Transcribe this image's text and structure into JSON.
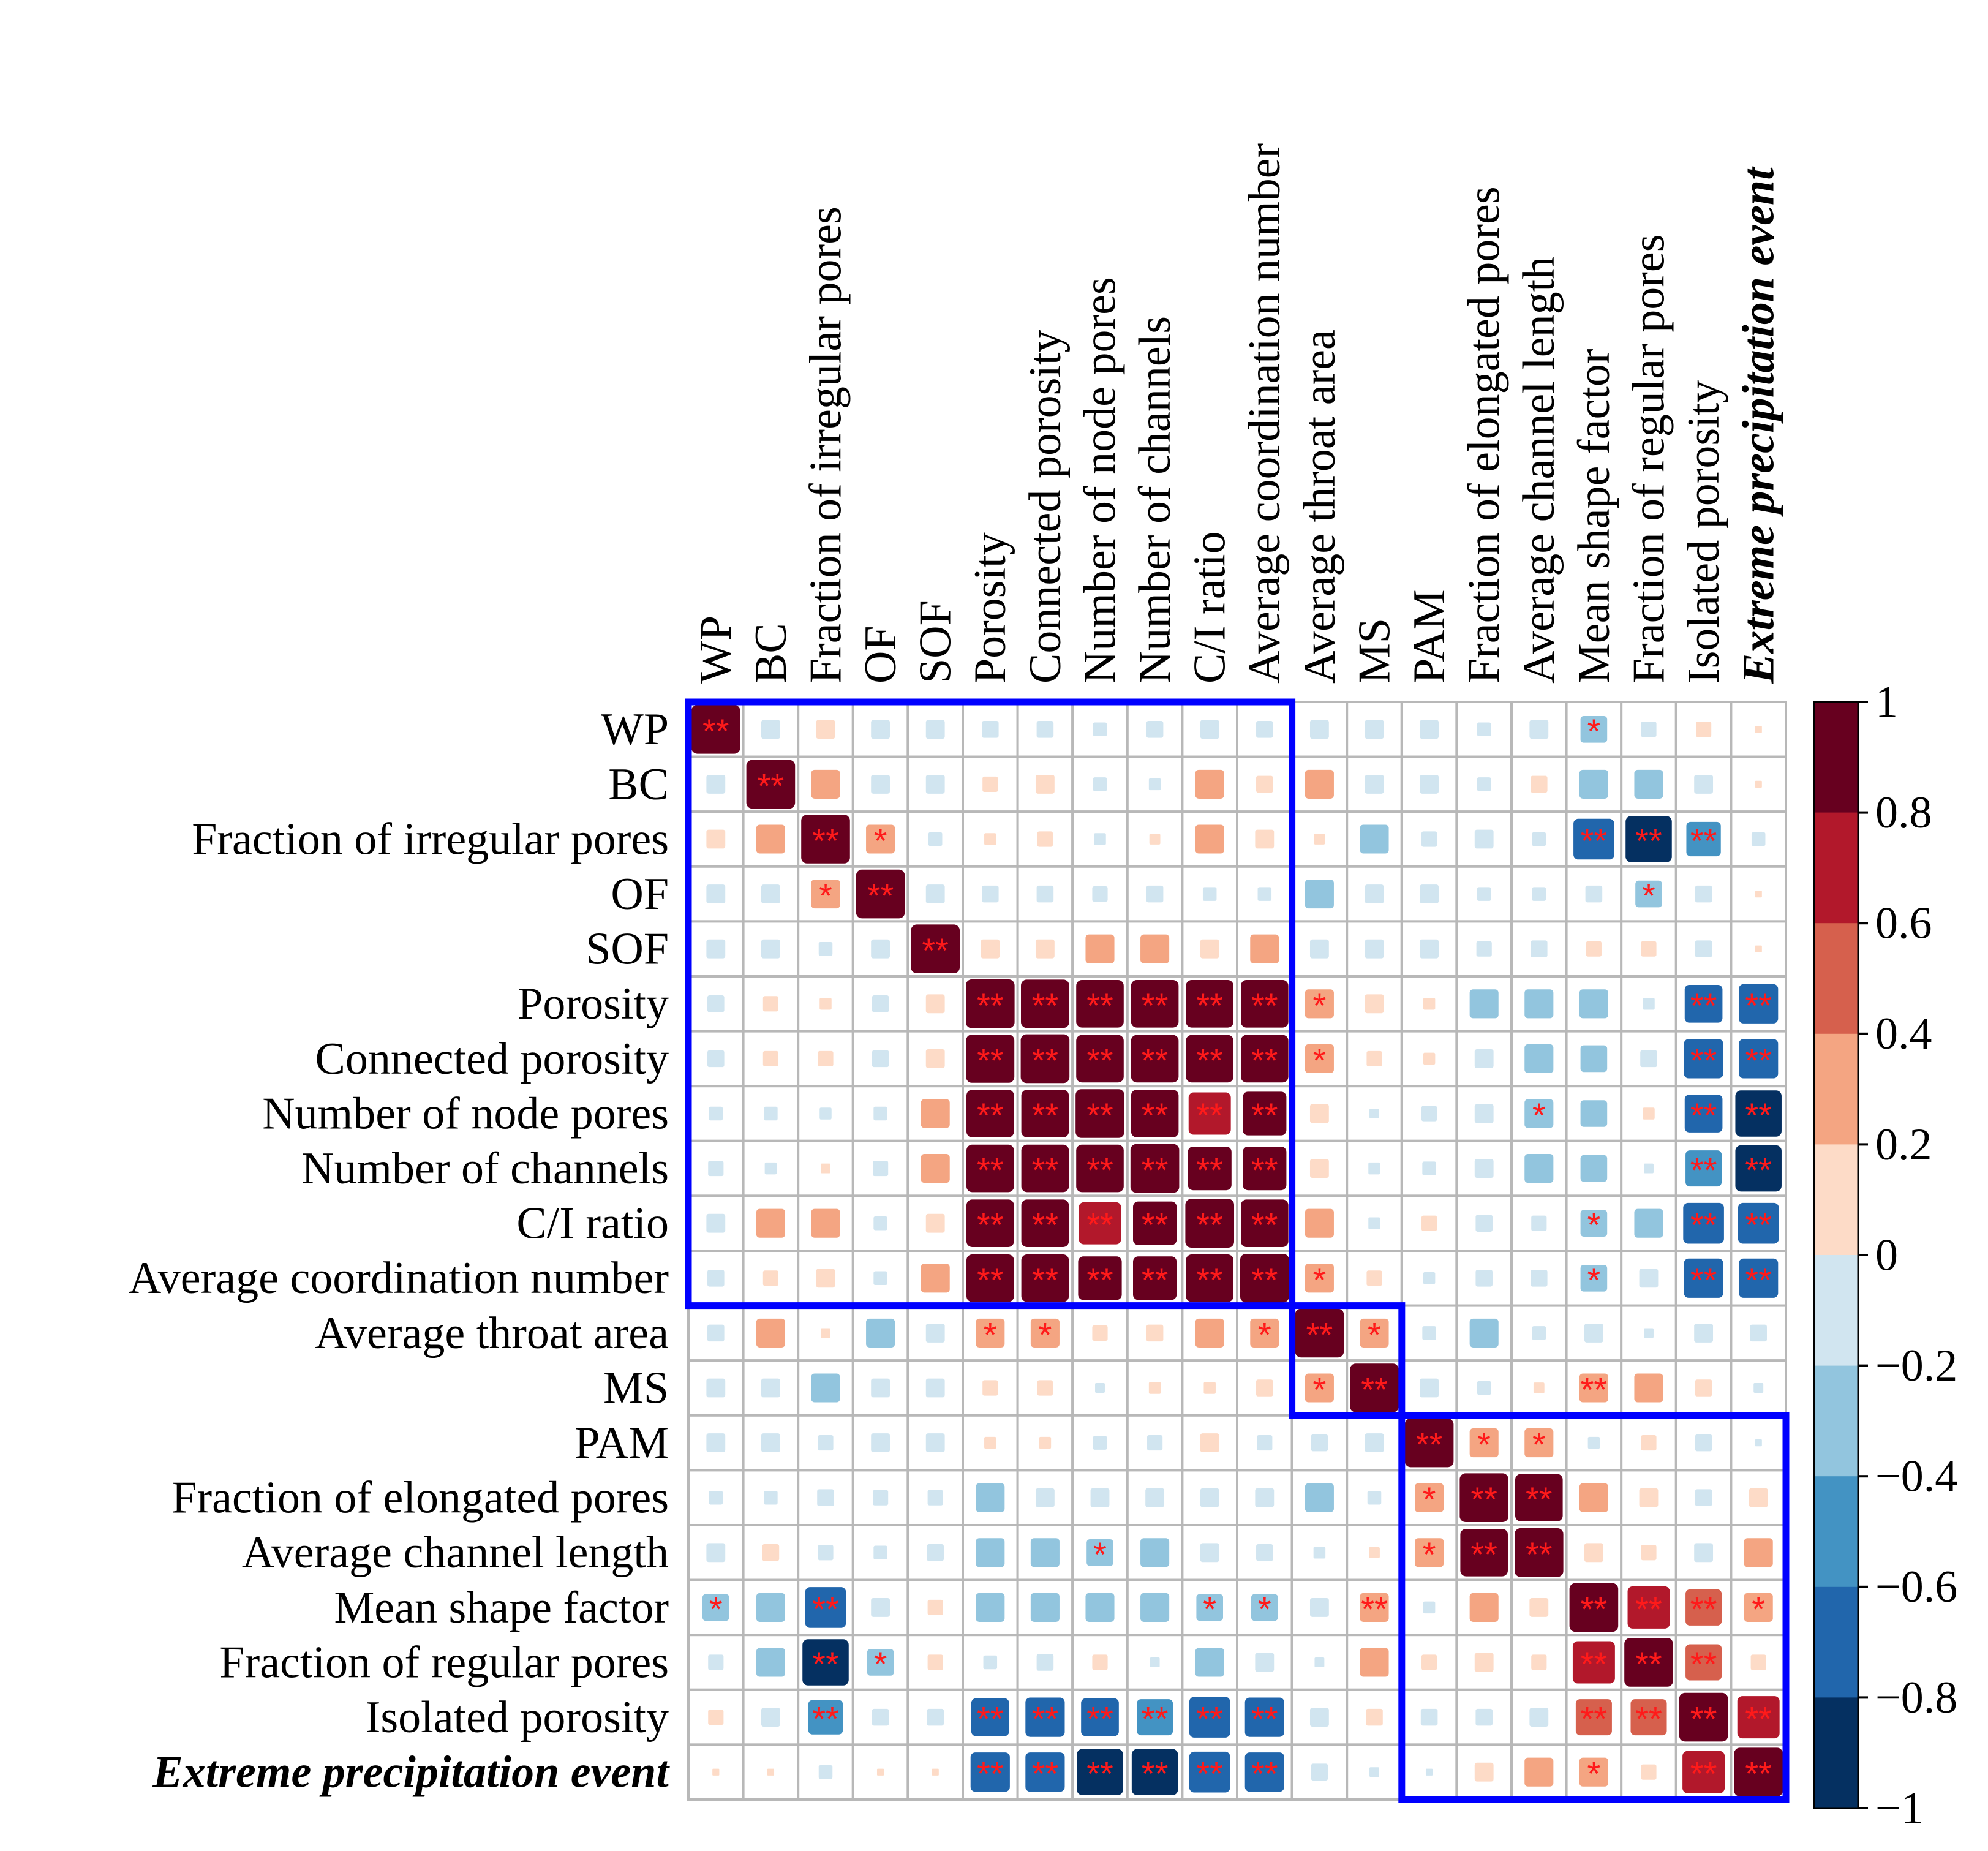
{
  "chart_data": {
    "type": "heatmap",
    "title": "",
    "labels": [
      "WP",
      "BC",
      "Fraction of irregular pores",
      "OF",
      "SOF",
      "Porosity",
      "Connected porosity",
      "Number of node pores",
      "Number of channels",
      "C/I ratio",
      "Average coordination number",
      "Average throat area",
      "MS",
      "PAM",
      "Fraction of elongated pores",
      "Average channel length",
      "Mean shape factor",
      "Fraction of regular pores",
      "Isolated porosity",
      "Extreme precipitation event"
    ],
    "emphasized_label": "Extreme precipitation event",
    "values": [
      [
        1.0,
        -0.15,
        0.15,
        -0.15,
        -0.15,
        -0.12,
        -0.12,
        -0.08,
        -0.12,
        -0.15,
        -0.12,
        -0.15,
        -0.15,
        -0.15,
        -0.08,
        -0.15,
        -0.3,
        -0.1,
        0.1,
        0.02
      ],
      [
        -0.15,
        1.0,
        0.35,
        -0.15,
        -0.15,
        0.1,
        0.15,
        -0.08,
        -0.06,
        0.35,
        0.12,
        0.35,
        -0.15,
        -0.15,
        -0.08,
        0.12,
        -0.35,
        -0.35,
        -0.15,
        0.02
      ],
      [
        0.15,
        0.35,
        1.0,
        0.35,
        -0.08,
        0.06,
        0.1,
        -0.06,
        0.05,
        0.35,
        0.15,
        0.05,
        -0.35,
        -0.1,
        -0.15,
        -0.08,
        -0.7,
        -0.9,
        -0.5,
        -0.08
      ],
      [
        -0.15,
        -0.15,
        0.35,
        1.0,
        -0.15,
        -0.12,
        -0.12,
        -0.1,
        -0.12,
        -0.08,
        -0.08,
        -0.35,
        -0.15,
        -0.15,
        -0.08,
        -0.08,
        -0.12,
        -0.3,
        -0.12,
        0.02
      ],
      [
        -0.15,
        -0.15,
        -0.08,
        -0.15,
        1.0,
        0.15,
        0.15,
        0.35,
        0.35,
        0.15,
        0.35,
        -0.15,
        -0.15,
        -0.15,
        -0.1,
        -0.12,
        0.1,
        0.1,
        -0.12,
        0.02
      ],
      [
        -0.12,
        0.1,
        0.06,
        -0.12,
        0.15,
        1.0,
        0.98,
        0.95,
        0.95,
        0.95,
        0.95,
        0.35,
        0.15,
        0.06,
        -0.35,
        -0.35,
        -0.35,
        -0.06,
        -0.6,
        -0.65
      ],
      [
        -0.12,
        0.1,
        0.1,
        -0.12,
        0.15,
        0.98,
        1.0,
        0.95,
        0.95,
        0.95,
        0.95,
        0.35,
        0.1,
        0.06,
        -0.15,
        -0.35,
        -0.3,
        -0.12,
        -0.65,
        -0.65
      ],
      [
        -0.08,
        -0.08,
        -0.06,
        -0.08,
        0.35,
        0.95,
        0.95,
        1.0,
        0.95,
        0.75,
        0.8,
        0.15,
        -0.04,
        -0.1,
        -0.15,
        -0.35,
        -0.3,
        0.06,
        -0.6,
        -0.9
      ],
      [
        -0.1,
        -0.06,
        0.04,
        -0.1,
        0.35,
        0.95,
        0.95,
        0.95,
        1.0,
        0.8,
        0.8,
        0.15,
        -0.06,
        -0.08,
        -0.15,
        -0.35,
        -0.3,
        -0.04,
        -0.55,
        -0.9
      ],
      [
        -0.15,
        0.35,
        0.35,
        -0.08,
        0.15,
        0.95,
        0.95,
        0.75,
        0.8,
        1.0,
        0.95,
        0.35,
        -0.06,
        0.1,
        -0.12,
        -0.1,
        -0.3,
        -0.35,
        -0.7,
        -0.7
      ],
      [
        -0.12,
        0.1,
        0.15,
        -0.08,
        0.35,
        0.95,
        0.95,
        0.8,
        0.8,
        0.95,
        1.0,
        0.35,
        0.1,
        -0.06,
        -0.12,
        -0.12,
        -0.3,
        -0.15,
        -0.65,
        -0.65
      ],
      [
        -0.12,
        0.35,
        0.04,
        -0.35,
        -0.15,
        0.35,
        0.35,
        0.1,
        0.12,
        0.35,
        0.35,
        1.0,
        0.35,
        -0.08,
        -0.35,
        -0.08,
        -0.15,
        -0.04,
        -0.15,
        -0.12
      ],
      [
        -0.15,
        -0.15,
        -0.35,
        -0.15,
        -0.15,
        0.1,
        0.1,
        -0.04,
        0.06,
        0.06,
        0.12,
        0.35,
        1.0,
        -0.15,
        -0.08,
        0.05,
        0.35,
        0.35,
        0.12,
        -0.04
      ],
      [
        -0.15,
        -0.15,
        -0.1,
        -0.15,
        -0.15,
        0.06,
        0.06,
        -0.08,
        -0.1,
        0.15,
        -0.1,
        -0.12,
        -0.15,
        1.0,
        0.35,
        0.35,
        -0.06,
        0.1,
        -0.12,
        -0.02
      ],
      [
        -0.08,
        -0.08,
        -0.12,
        -0.1,
        -0.1,
        -0.35,
        -0.15,
        -0.15,
        -0.15,
        -0.15,
        -0.15,
        -0.35,
        -0.08,
        0.35,
        1.0,
        0.95,
        0.35,
        0.15,
        -0.12,
        0.15
      ],
      [
        -0.15,
        0.12,
        -0.1,
        -0.08,
        -0.12,
        -0.35,
        -0.35,
        -0.3,
        -0.35,
        -0.15,
        -0.12,
        -0.06,
        0.05,
        0.35,
        0.95,
        1.0,
        0.15,
        0.1,
        -0.15,
        0.35
      ],
      [
        -0.3,
        -0.35,
        -0.7,
        -0.15,
        0.1,
        -0.35,
        -0.35,
        -0.35,
        -0.35,
        -0.3,
        -0.3,
        -0.15,
        0.35,
        -0.06,
        0.35,
        0.15,
        1.0,
        0.75,
        0.55,
        0.35
      ],
      [
        -0.1,
        -0.35,
        -0.9,
        -0.3,
        0.1,
        -0.08,
        -0.12,
        0.1,
        -0.04,
        -0.35,
        -0.15,
        -0.04,
        0.35,
        0.1,
        0.15,
        0.1,
        0.75,
        1.0,
        0.55,
        0.1
      ],
      [
        0.1,
        -0.15,
        -0.5,
        -0.12,
        -0.12,
        -0.6,
        -0.65,
        -0.6,
        -0.55,
        -0.7,
        -0.65,
        -0.15,
        0.12,
        -0.12,
        -0.12,
        -0.15,
        0.55,
        0.55,
        1.0,
        0.75
      ],
      [
        0.02,
        0.02,
        -0.08,
        0.02,
        0.02,
        -0.65,
        -0.65,
        -0.9,
        -0.9,
        -0.7,
        -0.65,
        -0.12,
        -0.04,
        -0.02,
        0.15,
        0.35,
        0.35,
        0.1,
        0.75,
        1.0
      ]
    ],
    "significance_pairs": [
      [
        2,
        3,
        "*"
      ],
      [
        0,
        16,
        "*"
      ],
      [
        2,
        16,
        "**"
      ],
      [
        2,
        17,
        "**"
      ],
      [
        2,
        18,
        "**"
      ],
      [
        3,
        17,
        "*"
      ],
      [
        5,
        11,
        "*"
      ],
      [
        6,
        11,
        "*"
      ],
      [
        7,
        15,
        "*"
      ],
      [
        9,
        16,
        "*"
      ],
      [
        10,
        16,
        "*"
      ],
      [
        10,
        11,
        "*"
      ],
      [
        5,
        18,
        "**"
      ],
      [
        6,
        18,
        "**"
      ],
      [
        7,
        18,
        "**"
      ],
      [
        8,
        18,
        "**"
      ],
      [
        9,
        18,
        "**"
      ],
      [
        10,
        18,
        "**"
      ],
      [
        5,
        19,
        "**"
      ],
      [
        6,
        19,
        "**"
      ],
      [
        7,
        19,
        "**"
      ],
      [
        8,
        19,
        "**"
      ],
      [
        9,
        19,
        "**"
      ],
      [
        10,
        19,
        "**"
      ],
      [
        11,
        12,
        "*"
      ],
      [
        12,
        16,
        "**"
      ],
      [
        13,
        14,
        "*"
      ],
      [
        13,
        15,
        "*"
      ],
      [
        14,
        15,
        "**"
      ],
      [
        16,
        17,
        "**"
      ],
      [
        16,
        18,
        "**"
      ],
      [
        16,
        19,
        "*"
      ],
      [
        17,
        18,
        "**"
      ],
      [
        18,
        19,
        "**"
      ]
    ],
    "diagonal_significance": "**",
    "significance_block": {
      "from": 5,
      "to": 10,
      "marker": "**"
    },
    "groups": [
      {
        "from": 0,
        "to": 10
      },
      {
        "from": 11,
        "to": 12
      },
      {
        "from": 13,
        "to": 19
      }
    ],
    "colorbar": {
      "ticks": [
        "1",
        "0.8",
        "0.6",
        "0.4",
        "0.2",
        "0",
        "−0.2",
        "−0.4",
        "−0.6",
        "−0.8",
        "−1"
      ],
      "range": [
        -1,
        1
      ],
      "colors": [
        "#67001f",
        "#b2182b",
        "#d6604d",
        "#f4a582",
        "#fddbc7",
        "#d1e5f0",
        "#92c5de",
        "#4393c3",
        "#2166ac",
        "#053061"
      ]
    },
    "group_box_color": "#0000ff",
    "significance_color": "#ff1a1a",
    "grid_color": "#b8b8b8"
  }
}
